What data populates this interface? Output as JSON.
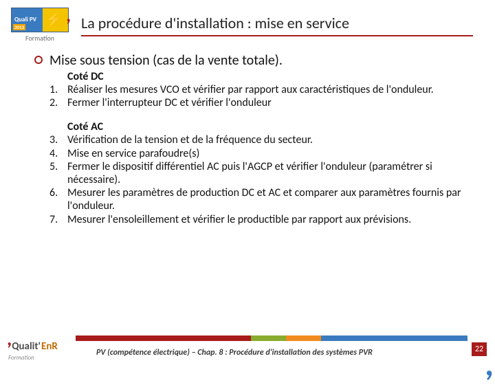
{
  "header": {
    "logo_text": "Quali PV",
    "logo_year": "2013",
    "logo_sub": "Formation",
    "title": "La procédure d'installation : mise en service"
  },
  "main": {
    "bullet": "Mise sous tension (cas de la vente totale).",
    "section_dc_heading": "Coté DC",
    "dc_items": [
      {
        "n": "1.",
        "t": "Réaliser les mesures VCO et vérifier par rapport aux caractéristiques de l'onduleur."
      },
      {
        "n": "2.",
        "t": "Fermer l'interrupteur DC et vérifier l'onduleur"
      }
    ],
    "section_ac_heading": "Coté AC",
    "ac_items": [
      {
        "n": "3.",
        "t": "Vérification de la tension et de la fréquence du secteur."
      },
      {
        "n": "4.",
        "t": "Mise en service parafoudre(s)"
      },
      {
        "n": "5.",
        "t": "Fermer le dispositif différentiel AC puis l'AGCP et vérifier l'onduleur (paramétrer si nécessaire)."
      },
      {
        "n": "6.",
        "t": "Mesurer les paramètres de production DC et AC et comparer aux paramètres fournis par l'onduleur."
      },
      {
        "n": "7.",
        "t": "Mesurer l'ensoleillement et vérifier le productible par rapport aux prévisions."
      }
    ]
  },
  "footer": {
    "logo1": "Qualit'",
    "logo2": "EnR",
    "sub": "Formation",
    "caption": "PV (compétence électrique) – Chap. 8 : Procédure d'installation des systèmes PVR",
    "page": "22"
  },
  "colors": {
    "accent_red": "#a71b1b",
    "band_green": "#8aac2e",
    "band_orange": "#f08a1e",
    "band_blue": "#3a7bbf"
  }
}
